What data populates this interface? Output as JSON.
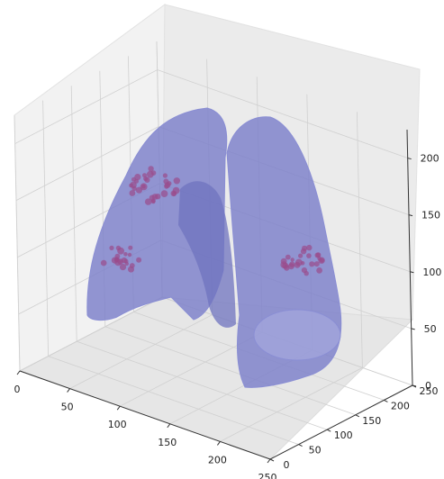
{
  "chart_data": {
    "type": "scatter",
    "projection": "3d",
    "title": "",
    "xlabel": "",
    "ylabel": "",
    "zlabel": "",
    "xlim": [
      0,
      250
    ],
    "ylim": [
      0,
      250
    ],
    "zlim": [
      0,
      225
    ],
    "x_ticks": [
      "0",
      "50",
      "100",
      "150",
      "200",
      "250"
    ],
    "y_ticks": [
      "0",
      "50",
      "100",
      "150",
      "200",
      "250"
    ],
    "z_ticks": [
      "0",
      "50",
      "100",
      "150",
      "200"
    ],
    "grid": true,
    "legend": "none",
    "surface_color": "#7b7fc9",
    "nodule_color": "#9a4c8c",
    "series": [
      {
        "kind": "surface",
        "description_hint": "lung volume mesh"
      },
      {
        "kind": "nodules",
        "clusters": [
          {
            "region": "left-upper",
            "x": 85,
            "y": 200,
            "z": 150,
            "count": 32
          },
          {
            "region": "left-lower",
            "x": 70,
            "y": 200,
            "z": 85,
            "count": 20
          },
          {
            "region": "right-lower",
            "x": 200,
            "y": 200,
            "z": 75,
            "count": 26
          }
        ]
      }
    ]
  }
}
